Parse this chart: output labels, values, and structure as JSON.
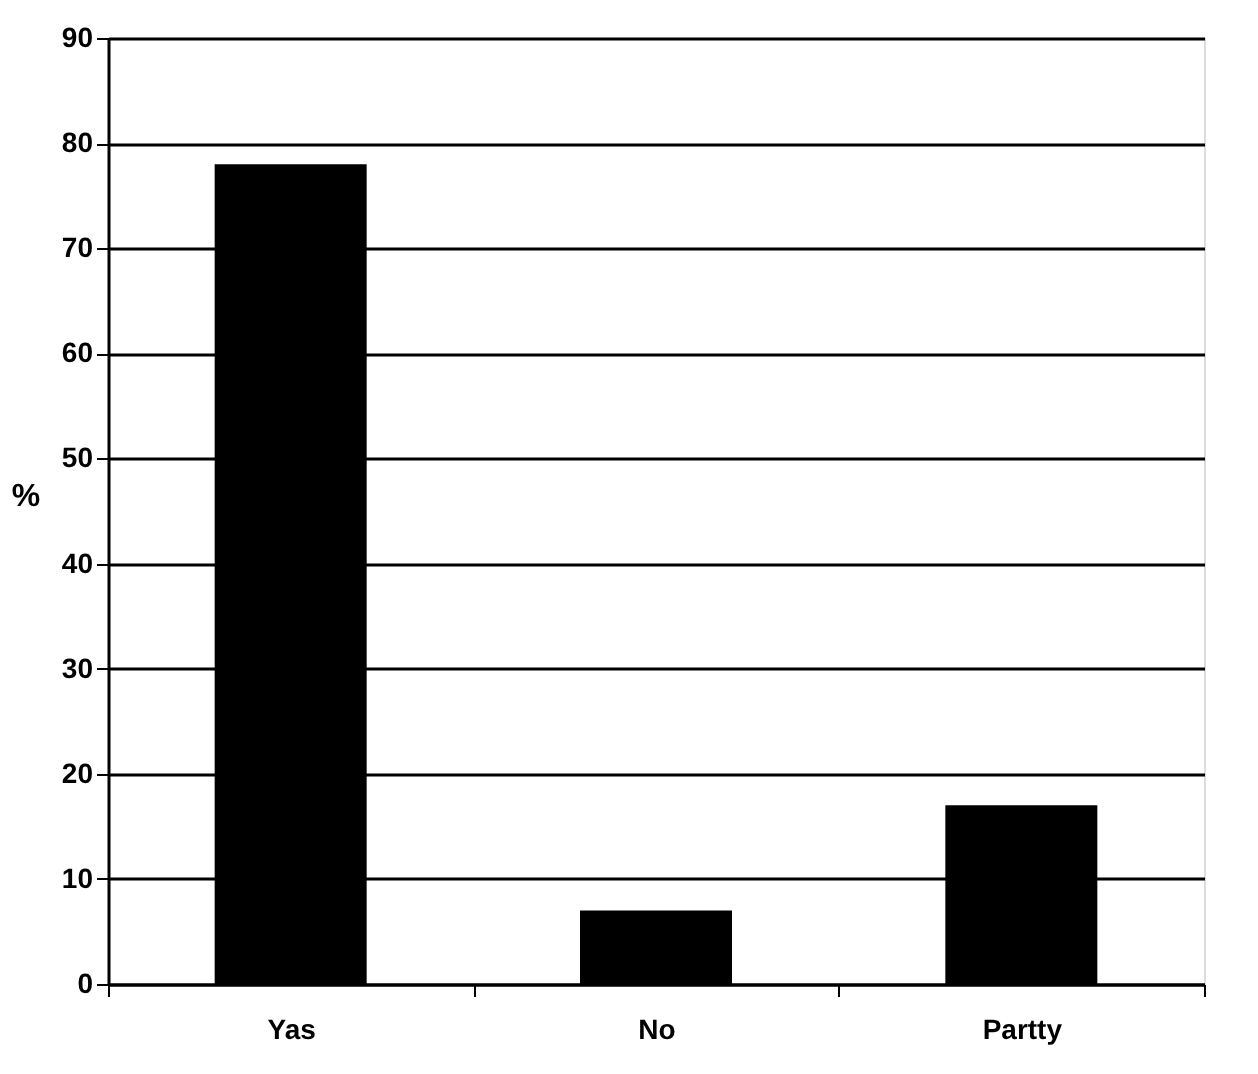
{
  "chart_data": {
    "type": "bar",
    "ylabel": "%",
    "categories": [
      "Yas",
      "No",
      "Partty"
    ],
    "values": [
      78,
      7,
      17
    ],
    "color": "#000000",
    "ylim": [
      0,
      90
    ],
    "yticks": [
      0,
      10,
      20,
      30,
      40,
      50,
      60,
      70,
      80,
      90
    ],
    "grid": "y"
  }
}
